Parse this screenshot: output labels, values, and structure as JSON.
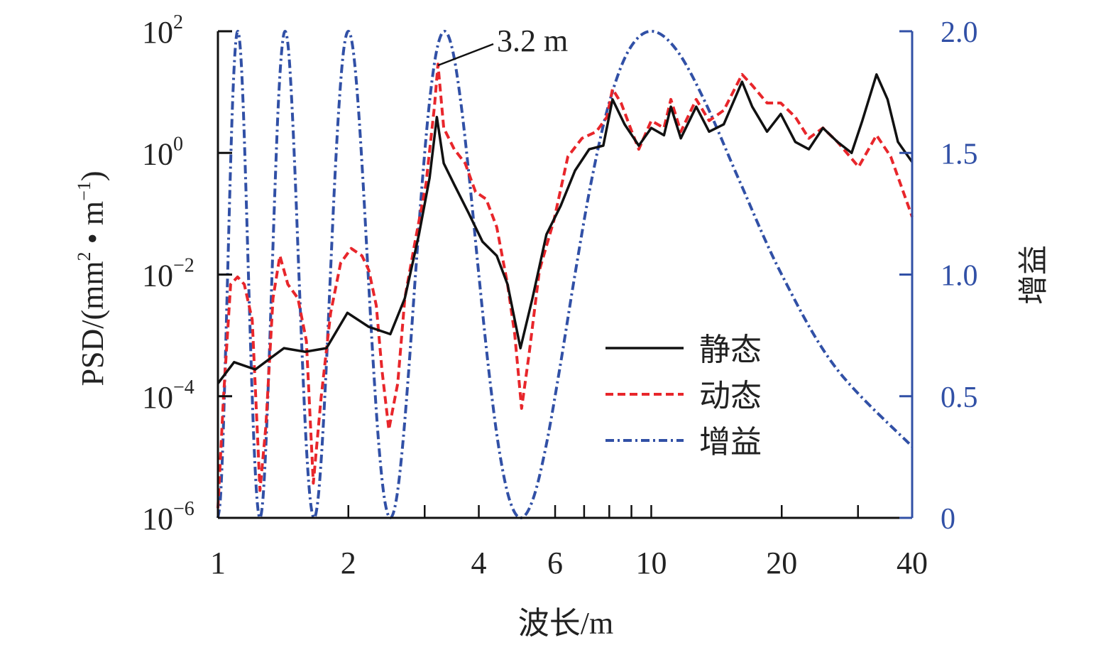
{
  "chart_data": {
    "type": "line",
    "xlabel": "波长/m",
    "ylabel": "PSD/(mm² • m⁻¹)",
    "ylabel_parts": {
      "prefix": "PSD/(mm",
      "sup1": "2",
      "mid": " • m",
      "sup2": "−1",
      "suffix": ")"
    },
    "y2label": "增益",
    "x_scale": "log",
    "xlim": [
      1,
      40
    ],
    "y_scale": "log",
    "ylim_log10": [
      -6,
      2
    ],
    "y2lim": [
      0,
      2.0
    ],
    "x_ticks": [
      {
        "value": 1,
        "label": "1"
      },
      {
        "value": 2,
        "label": "2"
      },
      {
        "value": 3,
        "label": ""
      },
      {
        "value": 4,
        "label": "4"
      },
      {
        "value": 6,
        "label": "6"
      },
      {
        "value": 7,
        "label": ""
      },
      {
        "value": 8,
        "label": ""
      },
      {
        "value": 9,
        "label": ""
      },
      {
        "value": 10,
        "label": "10"
      },
      {
        "value": 20,
        "label": "20"
      },
      {
        "value": 30,
        "label": ""
      },
      {
        "value": 40,
        "label": "40"
      }
    ],
    "y_ticks": [
      {
        "log10": 2,
        "base": "10",
        "exp": "2"
      },
      {
        "log10": 0,
        "base": "10",
        "exp": "0"
      },
      {
        "log10": -2,
        "base": "10",
        "exp": "−2"
      },
      {
        "log10": -4,
        "base": "10",
        "exp": "−4"
      },
      {
        "log10": -6,
        "base": "10",
        "exp": "−6"
      }
    ],
    "y2_ticks": [
      {
        "value": 0,
        "label": "0"
      },
      {
        "value": 0.5,
        "label": "0.5"
      },
      {
        "value": 1.0,
        "label": "1.0"
      },
      {
        "value": 1.5,
        "label": "1.5"
      },
      {
        "value": 2.0,
        "label": "2.0"
      }
    ],
    "annotation": {
      "text": "3.2 m",
      "x": 3.2,
      "y_log10": 1.46
    },
    "legend_position": "center-right",
    "series": [
      {
        "name": "静态",
        "axis": "left",
        "color": "#111111",
        "style": "solid",
        "x": [
          1.0,
          1.09,
          1.22,
          1.42,
          1.59,
          1.78,
          1.99,
          2.23,
          2.5,
          2.7,
          2.91,
          3.08,
          3.2,
          3.32,
          3.51,
          3.79,
          4.08,
          4.4,
          4.66,
          4.99,
          5.32,
          5.73,
          6.18,
          6.67,
          7.19,
          7.75,
          8.14,
          8.68,
          9.36,
          10.0,
          10.7,
          11.1,
          11.7,
          12.7,
          13.6,
          14.7,
          16.2,
          17.1,
          18.5,
          19.9,
          21.5,
          23.1,
          24.9,
          26.9,
          29.0,
          30.7,
          33.1,
          35.1,
          37.1,
          40.0
        ],
        "y_log10": [
          -3.79,
          -3.44,
          -3.56,
          -3.21,
          -3.27,
          -3.21,
          -2.63,
          -2.86,
          -2.98,
          -2.39,
          -1.34,
          -0.41,
          0.59,
          -0.17,
          -0.52,
          -0.99,
          -1.46,
          -1.69,
          -2.16,
          -3.21,
          -2.39,
          -1.34,
          -0.87,
          -0.29,
          0.06,
          0.12,
          0.88,
          0.47,
          0.12,
          0.41,
          0.29,
          0.76,
          0.24,
          0.76,
          0.35,
          0.47,
          1.17,
          0.76,
          0.35,
          0.64,
          0.18,
          0.06,
          0.41,
          0.18,
          0.0,
          0.53,
          1.29,
          0.88,
          0.18,
          -0.15
        ]
      },
      {
        "name": "动态",
        "axis": "left",
        "color": "#e8262b",
        "style": "dashed",
        "x": [
          1.0,
          1.03,
          1.07,
          1.11,
          1.15,
          1.2,
          1.24,
          1.25,
          1.29,
          1.34,
          1.39,
          1.45,
          1.53,
          1.6,
          1.66,
          1.73,
          1.82,
          1.92,
          2.03,
          2.15,
          2.23,
          2.32,
          2.39,
          2.48,
          2.6,
          2.7,
          2.85,
          3.02,
          3.16,
          3.22,
          3.32,
          3.51,
          3.72,
          3.93,
          4.16,
          4.4,
          4.66,
          4.84,
          5.02,
          5.22,
          5.52,
          5.96,
          6.42,
          6.92,
          7.47,
          7.9,
          8.14,
          8.52,
          9.02,
          9.36,
          10.0,
          10.7,
          11.1,
          11.7,
          12.7,
          13.6,
          14.7,
          16.2,
          17.1,
          18.5,
          19.9,
          21.5,
          23.1,
          24.9,
          26.9,
          30.1,
          33.1,
          35.7,
          40.0
        ],
        "y_log10": [
          -5.84,
          -4.03,
          -2.16,
          -2.04,
          -2.16,
          -2.74,
          -4.96,
          -5.55,
          -4.5,
          -2.39,
          -1.69,
          -2.16,
          -2.39,
          -3.09,
          -5.43,
          -4.03,
          -2.63,
          -1.81,
          -1.57,
          -1.69,
          -1.93,
          -2.51,
          -3.56,
          -4.55,
          -3.79,
          -2.39,
          -1.46,
          -0.52,
          0.76,
          1.46,
          0.41,
          0.06,
          -0.17,
          -0.64,
          -0.76,
          -1.22,
          -2.16,
          -2.98,
          -4.2,
          -3.33,
          -1.93,
          -1.11,
          -0.06,
          0.24,
          0.35,
          0.59,
          1.05,
          0.82,
          0.35,
          0.06,
          0.53,
          0.41,
          0.88,
          0.35,
          0.88,
          0.53,
          0.7,
          1.29,
          1.11,
          0.82,
          0.82,
          0.59,
          0.24,
          0.41,
          0.18,
          -0.23,
          0.29,
          -0.06,
          -1.05
        ]
      },
      {
        "name": "增益",
        "axis": "right",
        "color": "#3150a6",
        "style": "dashdot",
        "x": [
          1,
          1.013,
          1.026,
          1.039,
          1.053,
          1.067,
          1.081,
          1.096,
          1.111,
          1.127,
          1.143,
          1.159,
          1.176,
          1.194,
          1.212,
          1.231,
          1.25,
          1.27,
          1.29,
          1.311,
          1.333,
          1.356,
          1.379,
          1.404,
          1.429,
          1.455,
          1.481,
          1.509,
          1.538,
          1.569,
          1.6,
          1.633,
          1.667,
          1.702,
          1.739,
          1.778,
          1.818,
          1.86,
          1.905,
          1.951,
          2,
          2.051,
          2.105,
          2.162,
          2.222,
          2.286,
          2.353,
          2.424,
          2.5,
          2.581,
          2.667,
          2.759,
          2.857,
          2.963,
          3.077,
          3.2,
          3.333,
          3.478,
          3.636,
          3.81,
          4,
          4.211,
          4.444,
          4.706,
          5,
          5.333,
          5.714,
          6.154,
          6.667,
          7.273,
          8,
          8.889,
          10,
          11.429,
          13.333,
          16,
          20,
          26.667,
          40
        ],
        "y": [
          0,
          0.076,
          0.293,
          0.617,
          1,
          1.383,
          1.707,
          1.924,
          2,
          1.924,
          1.707,
          1.383,
          1,
          0.617,
          0.293,
          0.076,
          0,
          0.076,
          0.293,
          0.617,
          1,
          1.383,
          1.707,
          1.924,
          2,
          1.924,
          1.707,
          1.383,
          1,
          0.617,
          0.293,
          0.076,
          0,
          0.076,
          0.293,
          0.617,
          1,
          1.383,
          1.707,
          1.924,
          2,
          1.924,
          1.707,
          1.383,
          1,
          0.617,
          0.293,
          0.076,
          0,
          0.076,
          0.293,
          0.617,
          1,
          1.383,
          1.707,
          1.924,
          2,
          1.924,
          1.707,
          1.383,
          1,
          0.617,
          0.293,
          0.076,
          0,
          0.076,
          0.293,
          0.617,
          1,
          1.383,
          1.707,
          1.924,
          2,
          1.924,
          1.707,
          1.383,
          1,
          0.617,
          0.293
        ]
      }
    ]
  }
}
